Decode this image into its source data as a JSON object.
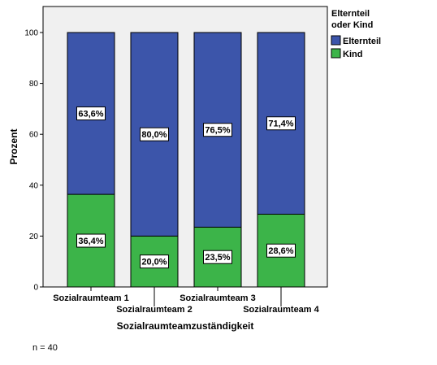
{
  "chart_data": {
    "type": "bar",
    "stacked": true,
    "categories": [
      "Sozialraumteam 1",
      "Sozialraumteam 2",
      "Sozialraumteam 3",
      "Sozialraumteam 4"
    ],
    "series": [
      {
        "name": "Kind",
        "values": [
          36.4,
          20.0,
          23.5,
          28.6
        ],
        "labels": [
          "36,4%",
          "20,0%",
          "23,5%",
          "28,6%"
        ],
        "color": "#3CB449"
      },
      {
        "name": "Elternteil",
        "values": [
          63.6,
          80.0,
          76.5,
          71.4
        ],
        "labels": [
          "63,6%",
          "80,0%",
          "76,5%",
          "71,4%"
        ],
        "color": "#3C55AA"
      }
    ],
    "xlabel": "Sozialraumteamzuständigkeit",
    "ylabel": "Prozent",
    "ylim": [
      0,
      100
    ],
    "yticks": [
      0,
      20,
      40,
      60,
      80,
      100
    ],
    "legend": {
      "title": "Elternteil oder Kind",
      "title_lines": [
        "Elternteil",
        "oder Kind"
      ],
      "entries": [
        "Elternteil",
        "Kind"
      ],
      "placement": "right-top"
    },
    "plot_background": "#F0F0F0",
    "grid": false
  },
  "note": "n = 40"
}
